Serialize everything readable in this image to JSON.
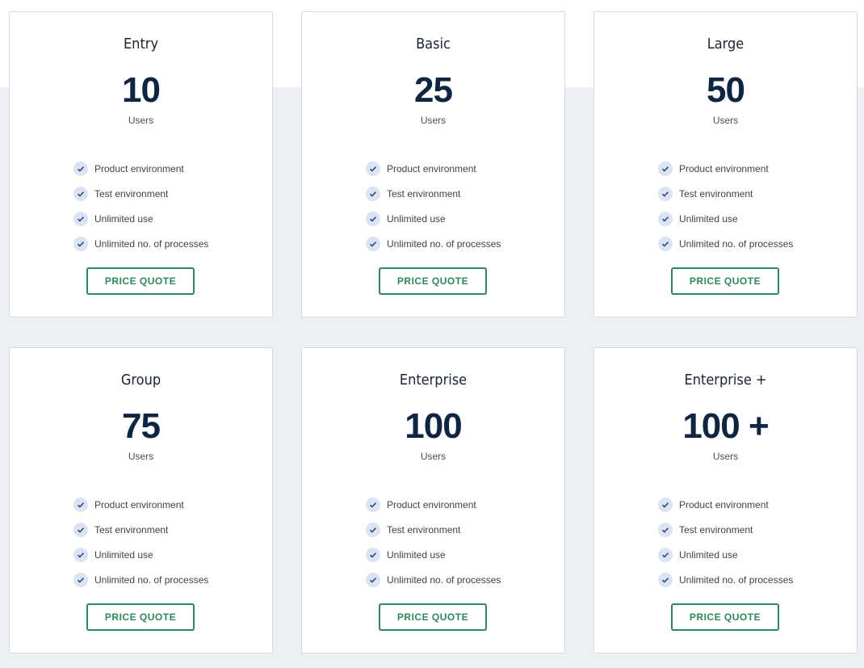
{
  "plans": [
    {
      "name": "Entry",
      "count": "10",
      "unit": "Users"
    },
    {
      "name": "Basic",
      "count": "25",
      "unit": "Users"
    },
    {
      "name": "Large",
      "count": "50",
      "unit": "Users"
    },
    {
      "name": "Group",
      "count": "75",
      "unit": "Users"
    },
    {
      "name": "Enterprise",
      "count": "100",
      "unit": "Users"
    },
    {
      "name": "Enterprise +",
      "count": "100 +",
      "unit": "Users"
    }
  ],
  "features": [
    "Product environment",
    "Test environment",
    "Unlimited use",
    "Unlimited no. of processes"
  ],
  "button_label": "PRICE QUOTE",
  "icons": {
    "feature": "check-circle-icon"
  },
  "colors": {
    "accent": "#2e8659",
    "heading": "#0f2541",
    "check_bg": "#dbe4f3",
    "background": "#eceff3"
  }
}
